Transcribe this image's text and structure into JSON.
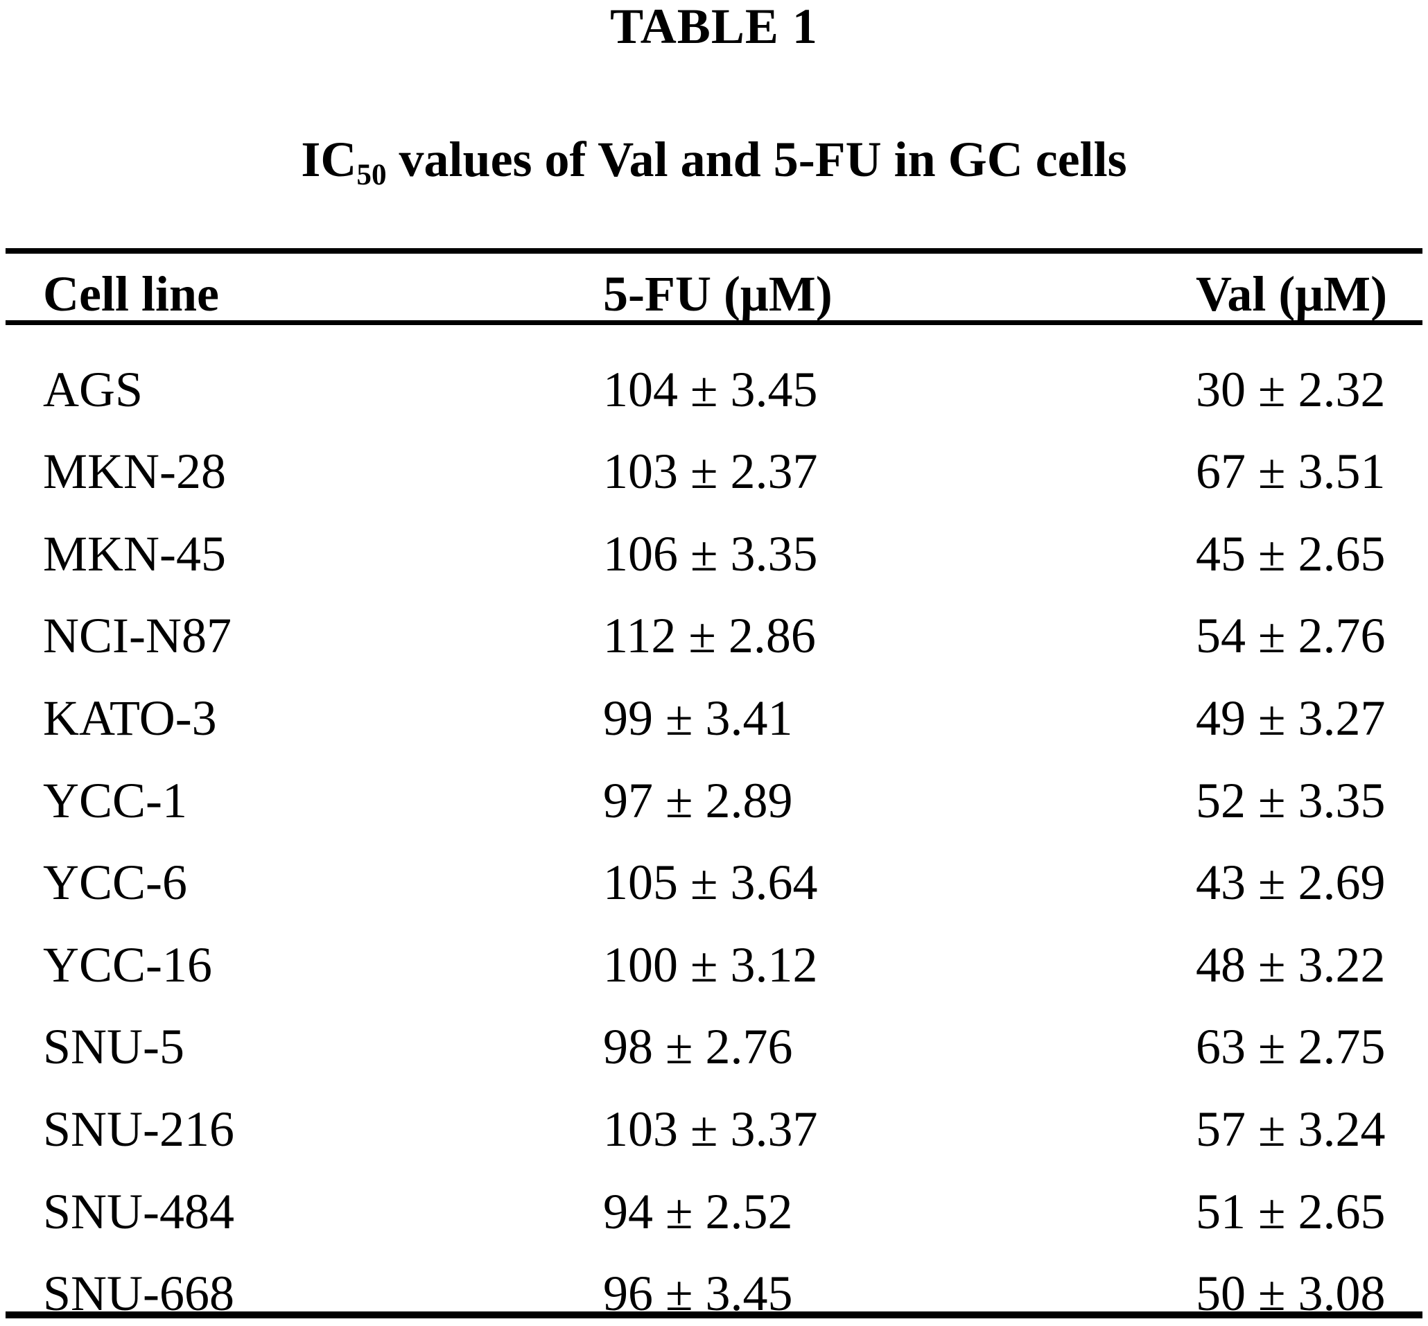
{
  "page": {
    "table_label": "TABLE 1",
    "caption": {
      "prefix": "IC",
      "subscript": "50",
      "rest": " values of Val and 5-FU in GC cells"
    }
  },
  "table": {
    "columns": [
      "Cell line",
      "5-FU (μM)",
      "Val (μM)"
    ],
    "rows": [
      {
        "cell_line": "AGS",
        "fu": "104 ± 3.45",
        "val": "30 ± 2.32"
      },
      {
        "cell_line": "MKN-28",
        "fu": "103 ± 2.37",
        "val": "67 ± 3.51"
      },
      {
        "cell_line": "MKN-45",
        "fu": "106 ± 3.35",
        "val": "45 ± 2.65"
      },
      {
        "cell_line": "NCI-N87",
        "fu": "112 ± 2.86",
        "val": "54 ± 2.76"
      },
      {
        "cell_line": "KATO-3",
        "fu": "99 ± 3.41",
        "val": "49 ± 3.27"
      },
      {
        "cell_line": "YCC-1",
        "fu": "97 ± 2.89",
        "val": "52 ± 3.35"
      },
      {
        "cell_line": "YCC-6",
        "fu": "105 ± 3.64",
        "val": "43 ± 2.69"
      },
      {
        "cell_line": "YCC-16",
        "fu": "100 ± 3.12",
        "val": "48 ± 3.22"
      },
      {
        "cell_line": "SNU-5",
        "fu": "98 ± 2.76",
        "val": "63 ± 2.75"
      },
      {
        "cell_line": "SNU-216",
        "fu": "103 ± 3.37",
        "val": "57 ± 3.24"
      },
      {
        "cell_line": "SNU-484",
        "fu": "94 ± 2.52",
        "val": "51 ± 2.65"
      },
      {
        "cell_line": "SNU-668",
        "fu": "96 ± 3.45",
        "val": "50 ± 3.08"
      }
    ]
  },
  "colors": {
    "text": "#000000",
    "background": "#ffffff",
    "rule": "#000000"
  }
}
